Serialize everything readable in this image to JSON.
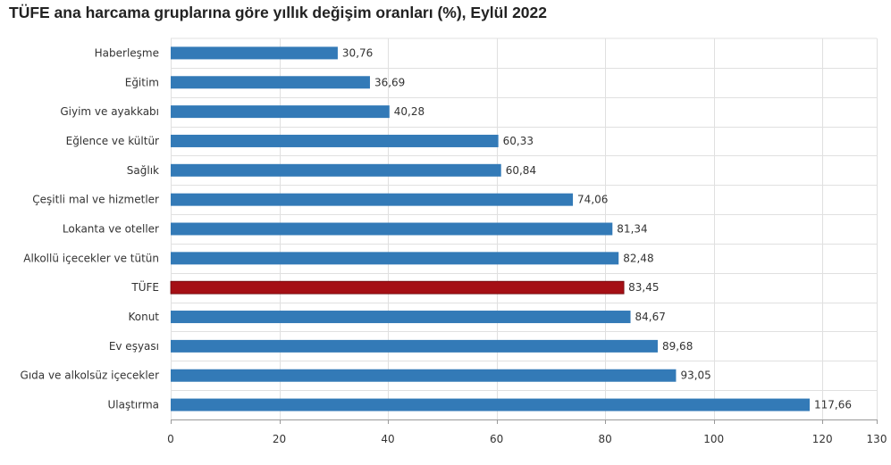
{
  "chart_data": {
    "type": "bar",
    "orientation": "horizontal",
    "title": "TÜFE ana harcama gruplarına göre yıllık değişim oranları (%), Eylül 2022",
    "xlabel": "",
    "ylabel": "",
    "xlim": [
      0,
      130
    ],
    "xticks": [
      0,
      20,
      40,
      60,
      80,
      100,
      120,
      130
    ],
    "grid": true,
    "legend": "none",
    "categories": [
      "Haberleşme",
      "Eğitim",
      "Giyim ve ayakkabı",
      "Eğlence ve kültür",
      "Sağlık",
      "Çeşitli mal ve hizmetler",
      "Lokanta ve oteller",
      "Alkollü içecekler ve tütün",
      "TÜFE",
      "Konut",
      "Ev eşyası",
      "Gıda ve alkolsüz içecekler",
      "Ulaştırma"
    ],
    "values": [
      30.76,
      36.69,
      40.28,
      60.33,
      60.84,
      74.06,
      81.34,
      82.48,
      83.45,
      84.67,
      89.68,
      93.05,
      117.66
    ],
    "value_labels": [
      "30,76",
      "36,69",
      "40,28",
      "60,33",
      "60,84",
      "74,06",
      "81,34",
      "82,48",
      "83,45",
      "84,67",
      "89,68",
      "93,05",
      "117,66"
    ],
    "highlight_category": "TÜFE",
    "colors": {
      "bar": "#337ab7",
      "highlight": "#a50f15",
      "grid": "#e0e0e0",
      "axis": "#999999"
    }
  }
}
